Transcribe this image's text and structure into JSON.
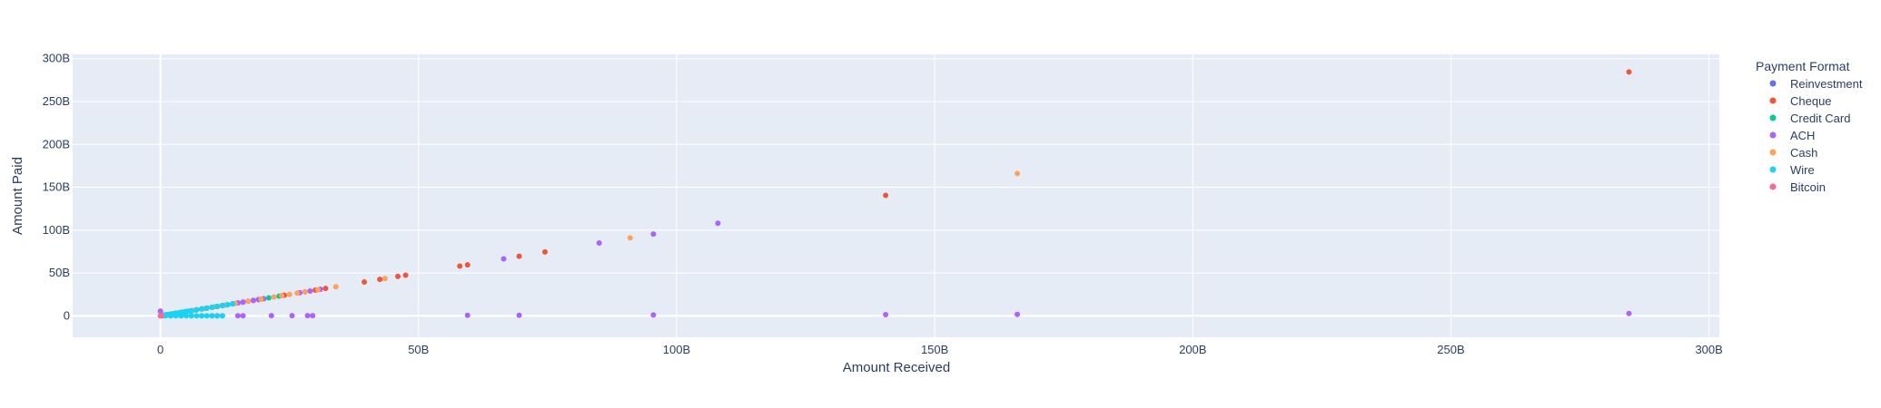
{
  "chart_data": {
    "type": "scatter",
    "title": "",
    "xlabel": "Amount Received",
    "ylabel": "Amount Paid",
    "xlim": [
      -17,
      302
    ],
    "ylim": [
      -25,
      305
    ],
    "x_unit": "billions",
    "y_unit": "billions",
    "x_ticks": [
      0,
      50,
      100,
      150,
      200,
      250,
      300
    ],
    "x_tick_labels": [
      "0",
      "50B",
      "100B",
      "150B",
      "200B",
      "250B",
      "300B"
    ],
    "y_ticks": [
      0,
      50,
      100,
      150,
      200,
      250,
      300
    ],
    "y_tick_labels": [
      "0",
      "50B",
      "100B",
      "150B",
      "200B",
      "250B",
      "300B"
    ],
    "grid": true,
    "legend_title": "Payment Format",
    "legend_placement": "right",
    "plot_background": "#e5ecf6",
    "series": [
      {
        "name": "Reinvestment",
        "color": "#636efa",
        "x": [
          0.1,
          0.3,
          0.6,
          1.2,
          2.0
        ],
        "y": [
          0.1,
          0.3,
          0.6,
          1.2,
          2.0
        ]
      },
      {
        "name": "Cheque",
        "color": "#ef553b",
        "x": [
          0.2,
          1,
          2,
          4,
          6,
          8,
          10,
          12,
          14,
          16,
          18,
          20,
          24,
          28,
          30,
          32,
          39.5,
          42.5,
          46,
          47.5,
          58,
          59.5,
          69.5,
          74.5,
          140.5,
          284.5
        ],
        "y": [
          0.2,
          1,
          2,
          4,
          6,
          8,
          10,
          12,
          14,
          16,
          18,
          20,
          24,
          28,
          30,
          32,
          39.5,
          42.5,
          46,
          47.5,
          58,
          59.5,
          69.5,
          74.5,
          140.5,
          284.5
        ]
      },
      {
        "name": "Credit Card",
        "color": "#00cc96",
        "x": [
          0.5,
          1.5,
          3,
          5,
          7,
          9,
          11,
          13,
          15,
          19,
          21,
          23
        ],
        "y": [
          0.5,
          1.5,
          3,
          5,
          7,
          9,
          11,
          13,
          15,
          19,
          21,
          23
        ]
      },
      {
        "name": "ACH",
        "color": "#ab63fa",
        "x": [
          0,
          0.5,
          1,
          2,
          3,
          4,
          5,
          6,
          7,
          8,
          9,
          10,
          11,
          12,
          13,
          14,
          15,
          16,
          17,
          18,
          19,
          20,
          27,
          29,
          31,
          66.5,
          85,
          95.5,
          108,
          2,
          4,
          6,
          8,
          10,
          11,
          12,
          15,
          16,
          21.5,
          25.5,
          28.5,
          29.5,
          59.5,
          69.5,
          95.5,
          140.5,
          166,
          284.5
        ],
        "y": [
          5.5,
          0.5,
          1,
          2,
          3,
          4,
          5,
          6,
          7,
          8,
          9,
          10,
          11,
          12,
          13,
          14,
          15,
          16,
          17,
          18,
          19,
          20,
          27,
          29,
          31,
          66.5,
          85,
          95.5,
          108,
          0.1,
          0.1,
          0.1,
          0.1,
          0.1,
          0.1,
          0.1,
          0.1,
          0.1,
          0.2,
          0.2,
          0.2,
          0.2,
          0.6,
          0.7,
          1.0,
          1.4,
          1.7,
          2.8
        ]
      },
      {
        "name": "Cash",
        "color": "#ffa15a",
        "x": [
          0.3,
          1,
          2.5,
          4.5,
          6.5,
          8.5,
          10.5,
          12.5,
          14.5,
          17,
          19.5,
          22,
          23.5,
          25,
          26.5,
          28,
          30.5,
          34,
          43.5,
          91,
          166
        ],
        "y": [
          0.3,
          1,
          2.5,
          4.5,
          6.5,
          8.5,
          10.5,
          12.5,
          14.5,
          17,
          19.5,
          22,
          23.5,
          25,
          26.5,
          28,
          30.5,
          34,
          43.5,
          91,
          166
        ]
      },
      {
        "name": "Wire",
        "color": "#19d3f3",
        "x": [
          0,
          0.2,
          0.4,
          0.6,
          0.8,
          1,
          1.3,
          1.6,
          2,
          2.4,
          2.8,
          3.2,
          3.6,
          4,
          4.5,
          5,
          5.5,
          6,
          7,
          8,
          9,
          10,
          11,
          12,
          13,
          14,
          0.5,
          1,
          2,
          3,
          4,
          5,
          6,
          7,
          8,
          9,
          10,
          11,
          12
        ],
        "y": [
          0,
          0.2,
          0.4,
          0.6,
          0.8,
          1,
          1.3,
          1.6,
          2,
          2.4,
          2.8,
          3.2,
          3.6,
          4,
          4.5,
          5,
          5.5,
          6,
          7,
          8,
          9,
          10,
          11,
          12,
          13,
          14,
          0,
          0,
          0,
          0,
          0,
          0,
          0,
          0,
          0,
          0,
          0,
          0,
          0
        ]
      },
      {
        "name": "Bitcoin",
        "color": "#ff6692",
        "x": [
          0,
          0.1,
          0.2
        ],
        "y": [
          0,
          0.1,
          0.2
        ]
      }
    ]
  }
}
